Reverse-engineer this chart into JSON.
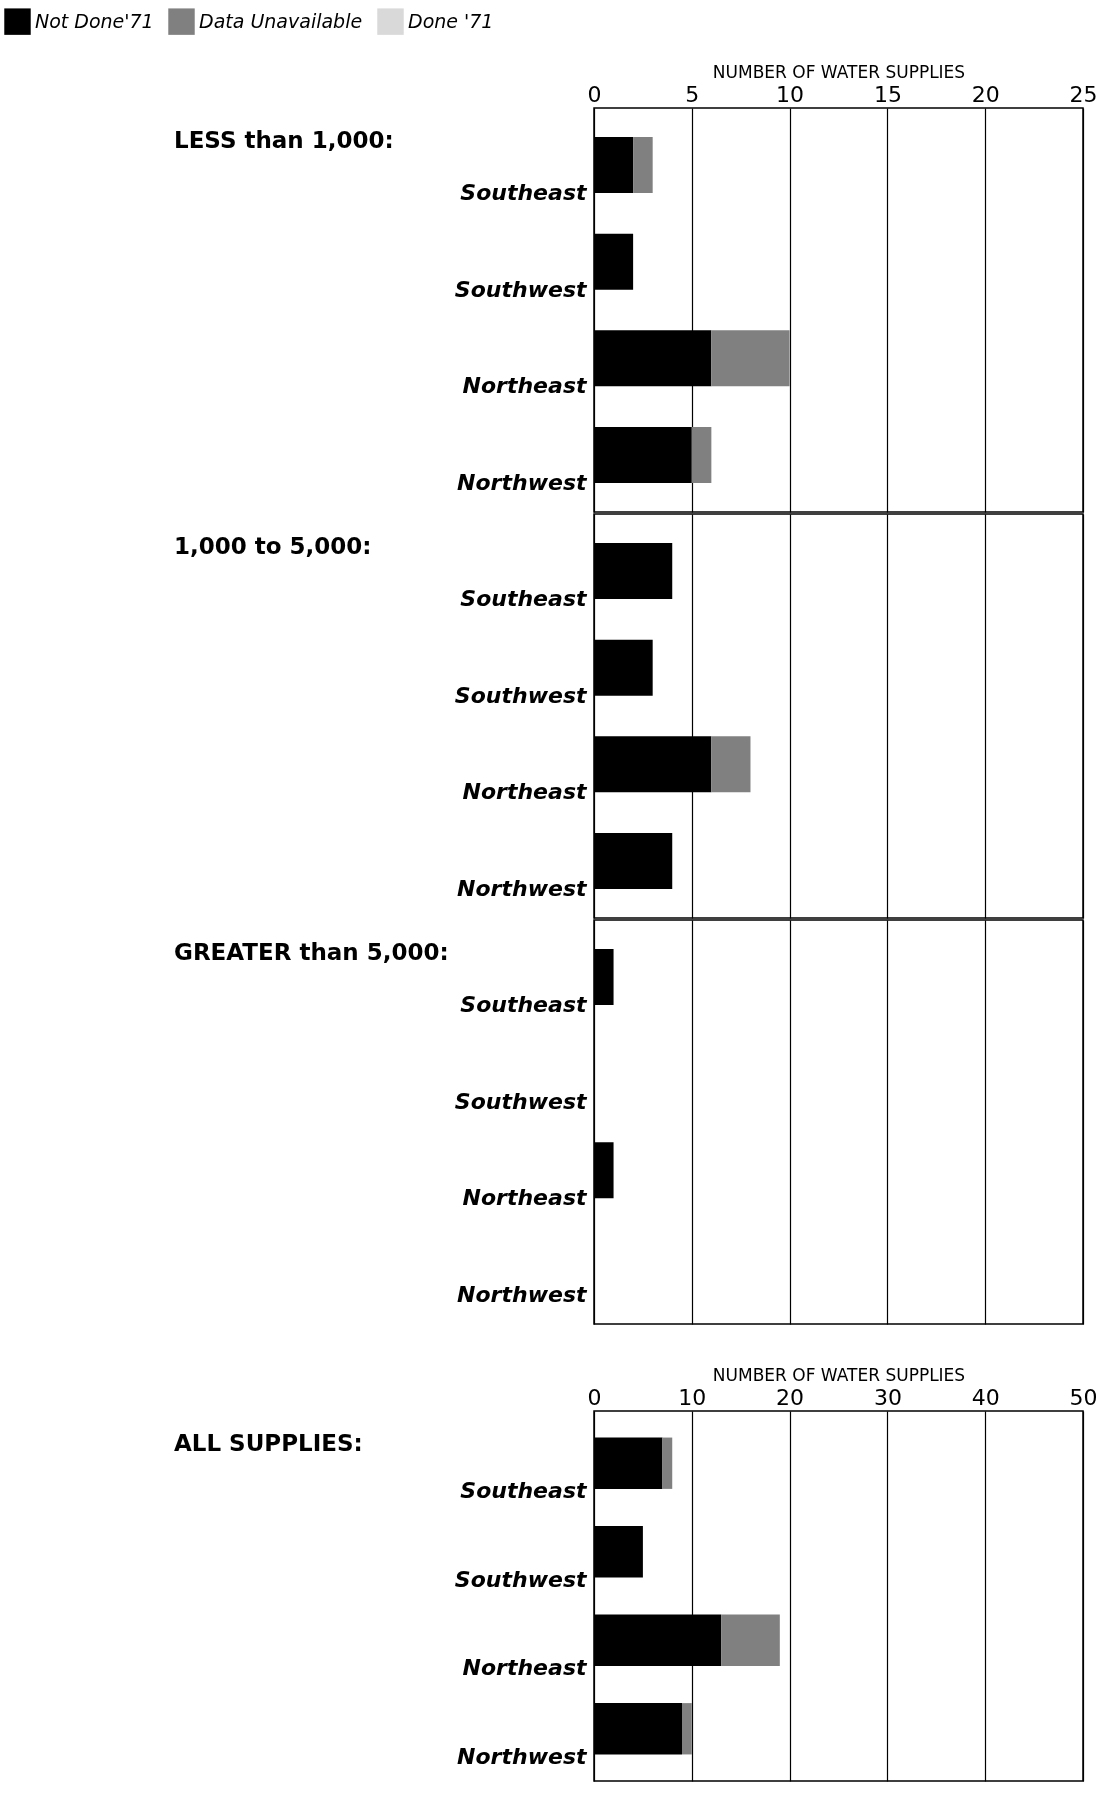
{
  "chart_data": [
    {
      "type": "bar",
      "orientation": "horizontal",
      "stacked": true,
      "title": "LESS than 1,000:",
      "xlabel": "NUMBER OF WATER SUPPLIES",
      "categories": [
        "Southeast",
        "Southwest",
        "Northeast",
        "Northwest"
      ],
      "series": [
        {
          "name": "Not Done'71",
          "color": "#000000",
          "values": [
            2,
            2,
            6,
            5
          ]
        },
        {
          "name": "Data Unavailable",
          "color": "#808080",
          "values": [
            1,
            null,
            4,
            1
          ]
        },
        {
          "name": "Done '71",
          "color": "#d9d9d9",
          "values": [
            null,
            null,
            null,
            null
          ]
        }
      ],
      "xlim": [
        0,
        25
      ],
      "xticks": [
        0,
        5,
        10,
        15,
        20,
        25
      ],
      "grid": "x",
      "legend": "top left"
    },
    {
      "type": "bar",
      "orientation": "horizontal",
      "stacked": true,
      "title": "1,000 to 5,000:",
      "categories": [
        "Southeast",
        "Southwest",
        "Northeast",
        "Northwest"
      ],
      "series": [
        {
          "color": "#000000",
          "values": [
            4,
            3,
            6,
            4
          ]
        },
        {
          "color": "#808080",
          "values": [
            null,
            null,
            2,
            null
          ]
        },
        {
          "color": "#d9d9d9",
          "values": [
            null,
            null,
            null,
            null
          ]
        }
      ],
      "xlim": [
        0,
        25
      ],
      "xticks": [
        0,
        5,
        10,
        15,
        20,
        25
      ],
      "grid": "x",
      "tick_labels": "y"
    },
    {
      "type": "bar",
      "orientation": "horizontal",
      "stacked": true,
      "title": "GREATER than 5,000:",
      "categories": [
        "Southeast",
        "Southwest",
        "Northeast",
        "Northwest"
      ],
      "series": [
        {
          "color": "#000000",
          "values": [
            1,
            0,
            1,
            0
          ]
        },
        {
          "color": "#808080",
          "values": [
            null,
            null,
            null,
            null
          ]
        },
        {
          "color": "#d9d9d9",
          "values": [
            null,
            null,
            null,
            null
          ]
        }
      ],
      "xlim": [
        0,
        25
      ],
      "xticks": [
        0,
        5,
        10,
        15,
        20,
        25
      ],
      "grid": "x",
      "tick_labels": "y"
    },
    {
      "type": "bar",
      "orientation": "horizontal",
      "stacked": true,
      "title": "ALL SUPPLIES:",
      "xlabel": "NUMBER OF WATER SUPPLIES",
      "categories": [
        "Southeast",
        "Southwest",
        "Northeast",
        "Northwest"
      ],
      "series": [
        {
          "color": "#000000",
          "values": [
            7,
            5,
            13,
            9
          ]
        },
        {
          "color": "#808080",
          "values": [
            1,
            null,
            6,
            1
          ]
        },
        {
          "color": "#d9d9d9",
          "values": [
            null,
            null,
            null,
            null
          ]
        }
      ],
      "xlim": [
        0,
        50
      ],
      "xticks": [
        0,
        10,
        20,
        30,
        40,
        50
      ],
      "grid": "x"
    }
  ]
}
